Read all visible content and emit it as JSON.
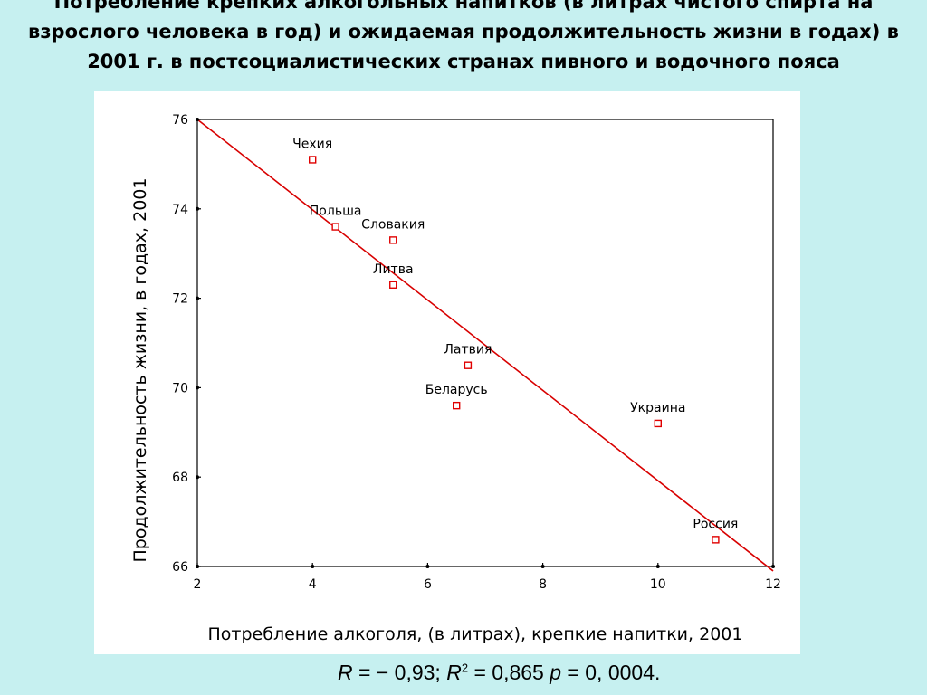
{
  "slide": {
    "title": "Потребление крепких алкогольных напитков (в литрах чистого спирта на взрослого человека в год) и ожидаемая продолжительность жизни в годах) в 2001 г. в постсоциалистических странах пивного и водочного пояса"
  },
  "chart_data": {
    "type": "scatter",
    "xlabel": "Потребление алкоголя, (в литрах), крепкие напитки, 2001",
    "ylabel": "Продолжительность жизни, в годах, 2001",
    "xlim": [
      2,
      12
    ],
    "ylim": [
      66,
      76
    ],
    "xticks": [
      2,
      4,
      6,
      8,
      10,
      12
    ],
    "yticks": [
      66,
      68,
      70,
      72,
      74,
      76
    ],
    "points": [
      {
        "label": "Чехия",
        "x": 4.0,
        "y": 75.1
      },
      {
        "label": "Польша",
        "x": 4.4,
        "y": 73.6
      },
      {
        "label": "Словакия",
        "x": 5.4,
        "y": 73.3
      },
      {
        "label": "Литва",
        "x": 5.4,
        "y": 72.3
      },
      {
        "label": "Латвия",
        "x": 6.7,
        "y": 70.5
      },
      {
        "label": "Беларусь",
        "x": 6.5,
        "y": 69.6
      },
      {
        "label": "Украина",
        "x": 10.0,
        "y": 69.2
      },
      {
        "label": "Россия",
        "x": 11.0,
        "y": 66.6
      }
    ],
    "fit_line": {
      "x": [
        2,
        12
      ],
      "y": [
        76,
        65.9
      ]
    },
    "colors": {
      "points": "#e00000",
      "fit_line": "#d80000",
      "axes": "#000000"
    }
  },
  "stats": {
    "r_label": "R",
    "r_value": " = − 0,93; ",
    "r2_label": "R",
    "r2_exp": "2",
    "r2_value": " = 0,865 ",
    "p_label": "p",
    "p_value": " = 0, 0004."
  }
}
